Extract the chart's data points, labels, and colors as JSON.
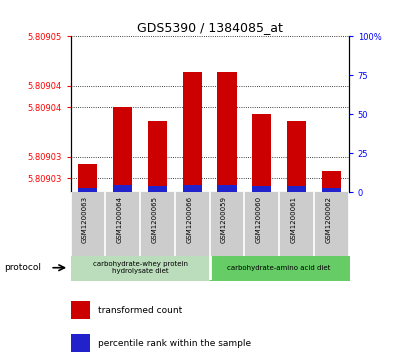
{
  "title": "GDS5390 / 1384085_at",
  "samples": [
    "GSM1200063",
    "GSM1200064",
    "GSM1200065",
    "GSM1200066",
    "GSM1200059",
    "GSM1200060",
    "GSM1200061",
    "GSM1200062"
  ],
  "transformed_counts": [
    5.809032,
    5.80904,
    5.809038,
    5.809045,
    5.809045,
    5.809039,
    5.809038,
    5.809031
  ],
  "percentile_ranks": [
    3,
    5,
    4,
    5,
    5,
    4,
    4,
    3
  ],
  "ylim_left": [
    5.809028,
    5.80905
  ],
  "ylim_right": [
    0,
    100
  ],
  "ytick_vals_left": [
    5.80903,
    5.809033,
    5.80904,
    5.809043,
    5.80905
  ],
  "ytick_labels_left": [
    "5.80903",
    "5.80903",
    "5.80904",
    "5.80904",
    "5.80905"
  ],
  "yticks_right": [
    0,
    25,
    50,
    75,
    100
  ],
  "ytick_labels_right": [
    "0",
    "25",
    "50",
    "75",
    "100%"
  ],
  "bar_color_red": "#cc0000",
  "bar_color_blue": "#2222cc",
  "protocol_groups": [
    {
      "label": "carbohydrate-whey protein\nhydrolysate diet",
      "start": 0,
      "end": 3,
      "color": "#bbddbb"
    },
    {
      "label": "carbohydrate-amino acid diet",
      "start": 4,
      "end": 7,
      "color": "#66cc66"
    }
  ],
  "legend_red_label": "transformed count",
  "legend_blue_label": "percentile rank within the sample",
  "protocol_label": "protocol",
  "background_color": "#ffffff",
  "plot_bg_color": "#ffffff",
  "sample_bg_color": "#cccccc",
  "base_value": 5.809028,
  "bar_width": 0.55
}
